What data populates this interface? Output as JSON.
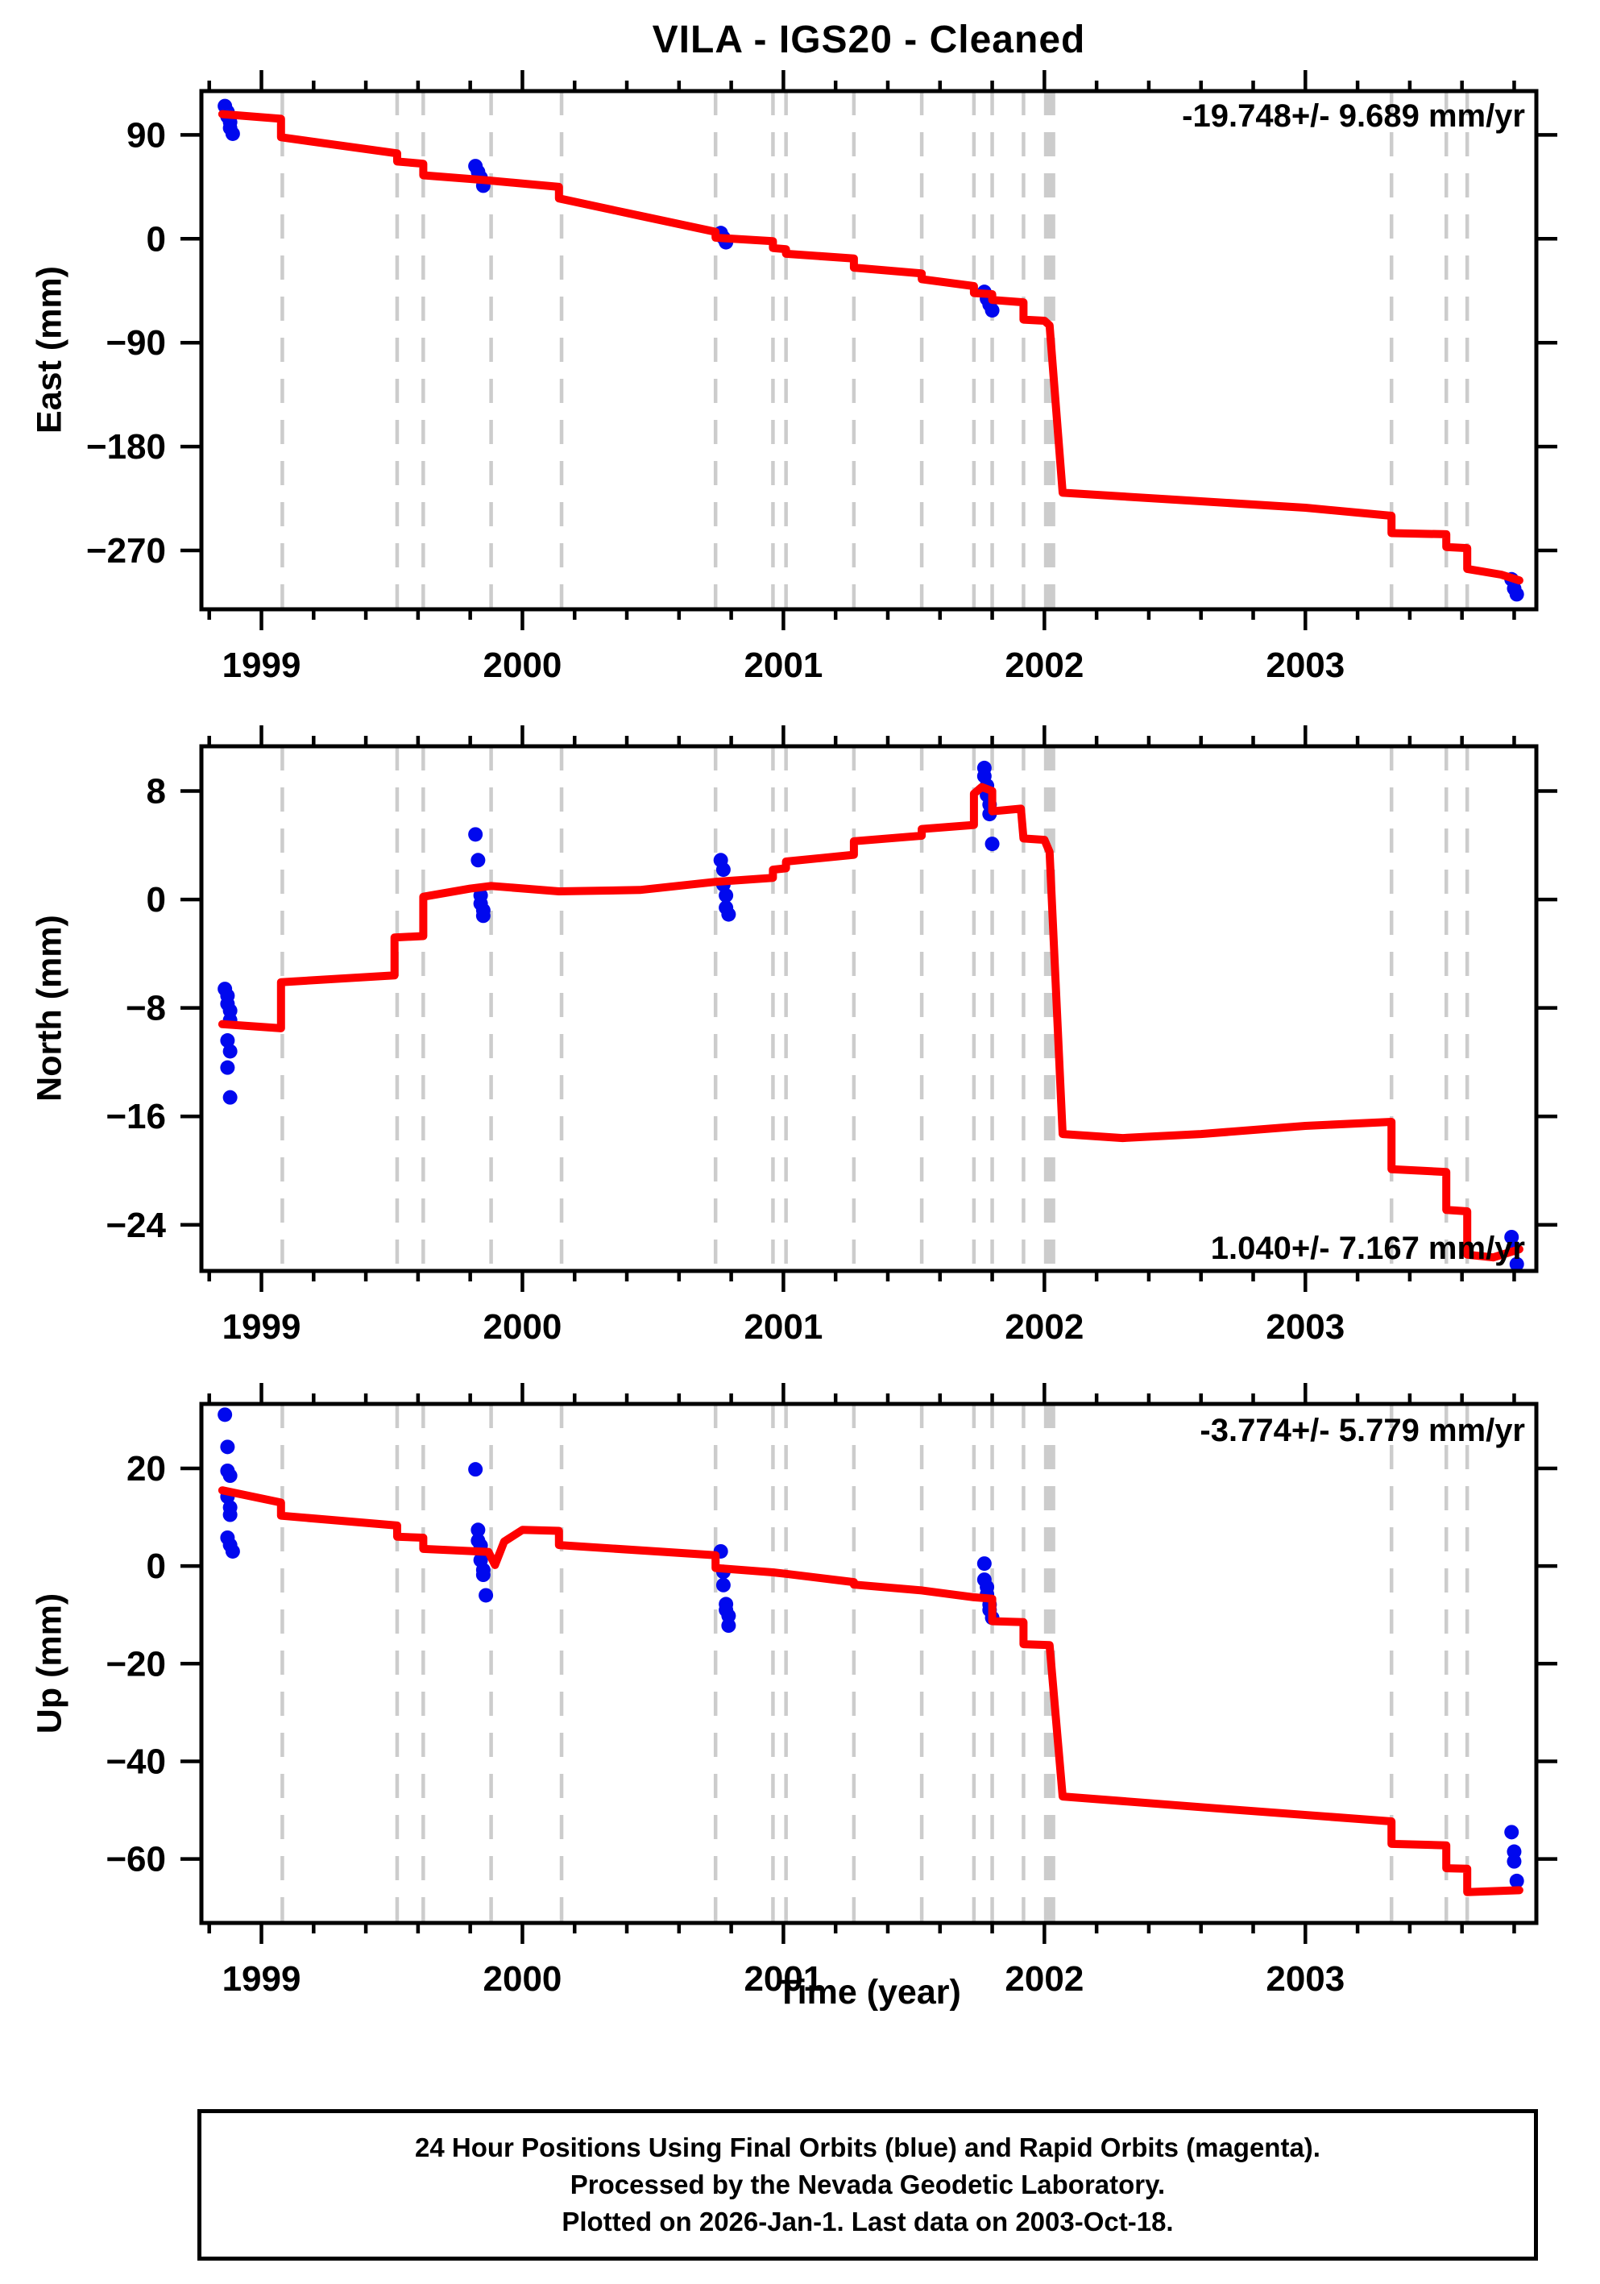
{
  "title": "VILA  - IGS20 - Cleaned",
  "xlabel": "Time (year)",
  "caption": {
    "line1": "24 Hour Positions Using Final Orbits (blue) and Rapid Orbits (magenta).",
    "line2": "Processed by the Nevada Geodetic Laboratory.",
    "line3": "Plotted on 2026-Jan-1. Last data on 2003-Oct-18."
  },
  "colors": {
    "model_line": "#fe0000",
    "final_orbit_points": "#0008ee",
    "event_lines": "#cccccc",
    "axis": "#000000",
    "background": "#ffffff"
  },
  "x_axis": {
    "lim": [
      1998.77,
      2003.885
    ],
    "year_ticks": [
      1999,
      2000,
      2001,
      2002,
      2003
    ],
    "minor_tick_interval": 0.2
  },
  "events": {
    "dashed": [
      1999.08,
      1999.52,
      1999.62,
      1999.88,
      2000.15,
      2000.74,
      2000.96,
      2001.01,
      2001.27,
      2001.53,
      2001.73,
      2001.8,
      2001.92,
      2003.33,
      2003.54,
      2003.62
    ],
    "thick": [
      2002.02
    ]
  },
  "chart_data": [
    {
      "type": "line",
      "name": "east",
      "ylabel": "East (mm)",
      "annotation": "-19.748+/- 9.689 mm/yr",
      "annotation_corner": "top-right",
      "ylim": [
        -321,
        128
      ],
      "yticks": [
        90,
        0,
        -90,
        -180,
        -270
      ],
      "model_line": [
        [
          1998.85,
          108
        ],
        [
          1999.075,
          104
        ],
        [
          1999.075,
          88
        ],
        [
          1999.52,
          74
        ],
        [
          1999.52,
          67
        ],
        [
          1999.62,
          65
        ],
        [
          1999.62,
          55
        ],
        [
          1999.85,
          51
        ],
        [
          2000.14,
          45
        ],
        [
          2000.14,
          35
        ],
        [
          2000.45,
          20
        ],
        [
          2000.74,
          6
        ],
        [
          2000.74,
          1
        ],
        [
          2000.96,
          -2
        ],
        [
          2000.96,
          -8
        ],
        [
          2001.01,
          -9
        ],
        [
          2001.01,
          -13
        ],
        [
          2001.27,
          -17
        ],
        [
          2001.27,
          -25
        ],
        [
          2001.53,
          -30
        ],
        [
          2001.53,
          -35
        ],
        [
          2001.73,
          -41
        ],
        [
          2001.73,
          -47
        ],
        [
          2001.8,
          -48
        ],
        [
          2001.8,
          -53
        ],
        [
          2001.92,
          -55
        ],
        [
          2001.92,
          -70
        ],
        [
          2002.0,
          -71
        ],
        [
          2002.02,
          -75
        ],
        [
          2002.07,
          -220
        ],
        [
          2002.5,
          -226
        ],
        [
          2003.0,
          -233
        ],
        [
          2003.33,
          -240
        ],
        [
          2003.33,
          -255
        ],
        [
          2003.54,
          -256
        ],
        [
          2003.54,
          -267
        ],
        [
          2003.62,
          -268
        ],
        [
          2003.62,
          -286
        ],
        [
          2003.75,
          -291
        ],
        [
          2003.82,
          -296
        ]
      ],
      "points": [
        [
          1998.86,
          115
        ],
        [
          1998.87,
          110
        ],
        [
          1998.87,
          106
        ],
        [
          1998.88,
          101
        ],
        [
          1998.88,
          96
        ],
        [
          1998.89,
          91
        ],
        [
          1999.82,
          63
        ],
        [
          1999.83,
          58
        ],
        [
          1999.84,
          53
        ],
        [
          1999.85,
          46
        ],
        [
          2000.76,
          5
        ],
        [
          2000.77,
          1
        ],
        [
          2000.78,
          -3
        ],
        [
          2001.77,
          -46
        ],
        [
          2001.78,
          -52
        ],
        [
          2001.79,
          -57
        ],
        [
          2001.8,
          -62
        ],
        [
          2003.79,
          -295
        ],
        [
          2003.8,
          -303
        ],
        [
          2003.81,
          -308
        ]
      ]
    },
    {
      "type": "line",
      "name": "north",
      "ylabel": "North (mm)",
      "annotation": "1.040+/- 7.167 mm/yr",
      "annotation_corner": "bottom-right",
      "ylim": [
        -27.4,
        11.3
      ],
      "yticks": [
        8,
        0,
        -8,
        -16,
        -24
      ],
      "model_line": [
        [
          1998.85,
          -9.2
        ],
        [
          1999.075,
          -9.5
        ],
        [
          1999.075,
          -6.1
        ],
        [
          1999.51,
          -5.6
        ],
        [
          1999.51,
          -2.8
        ],
        [
          1999.62,
          -2.7
        ],
        [
          1999.62,
          0.2
        ],
        [
          1999.8,
          0.8
        ],
        [
          1999.88,
          1.0
        ],
        [
          2000.14,
          0.6
        ],
        [
          2000.45,
          0.7
        ],
        [
          2000.74,
          1.3
        ],
        [
          2000.96,
          1.6
        ],
        [
          2000.96,
          2.2
        ],
        [
          2001.01,
          2.3
        ],
        [
          2001.01,
          2.8
        ],
        [
          2001.27,
          3.3
        ],
        [
          2001.27,
          4.3
        ],
        [
          2001.53,
          4.7
        ],
        [
          2001.53,
          5.2
        ],
        [
          2001.73,
          5.5
        ],
        [
          2001.73,
          7.8
        ],
        [
          2001.76,
          8.3
        ],
        [
          2001.8,
          8.0
        ],
        [
          2001.8,
          6.5
        ],
        [
          2001.91,
          6.7
        ],
        [
          2001.92,
          4.5
        ],
        [
          2002.0,
          4.4
        ],
        [
          2002.02,
          3.5
        ],
        [
          2002.07,
          -17.3
        ],
        [
          2002.3,
          -17.6
        ],
        [
          2002.6,
          -17.3
        ],
        [
          2003.0,
          -16.7
        ],
        [
          2003.33,
          -16.4
        ],
        [
          2003.33,
          -19.9
        ],
        [
          2003.54,
          -20.1
        ],
        [
          2003.54,
          -22.9
        ],
        [
          2003.62,
          -23.0
        ],
        [
          2003.62,
          -26.2
        ],
        [
          2003.72,
          -26.4
        ],
        [
          2003.82,
          -25.8
        ]
      ],
      "points": [
        [
          1998.86,
          -6.6
        ],
        [
          1998.87,
          -7.1
        ],
        [
          1998.87,
          -7.7
        ],
        [
          1998.88,
          -8.2
        ],
        [
          1998.88,
          -8.9
        ],
        [
          1998.87,
          -10.4
        ],
        [
          1998.88,
          -11.2
        ],
        [
          1998.87,
          -12.4
        ],
        [
          1998.88,
          -14.6
        ],
        [
          1999.82,
          4.8
        ],
        [
          1999.83,
          2.9
        ],
        [
          1999.84,
          0.3
        ],
        [
          1999.84,
          -0.3
        ],
        [
          1999.85,
          -0.8
        ],
        [
          1999.85,
          -1.2
        ],
        [
          2000.76,
          2.9
        ],
        [
          2000.77,
          2.2
        ],
        [
          2000.77,
          1.1
        ],
        [
          2000.78,
          0.3
        ],
        [
          2000.78,
          -0.6
        ],
        [
          2000.79,
          -1.1
        ],
        [
          2001.77,
          9.7
        ],
        [
          2001.77,
          9.1
        ],
        [
          2001.78,
          8.4
        ],
        [
          2001.78,
          7.7
        ],
        [
          2001.79,
          7.0
        ],
        [
          2001.79,
          6.3
        ],
        [
          2001.8,
          4.1
        ],
        [
          2003.79,
          -24.9
        ],
        [
          2003.8,
          -25.7
        ],
        [
          2003.81,
          -26.9
        ]
      ]
    },
    {
      "type": "line",
      "name": "up",
      "ylabel": "Up (mm)",
      "annotation": "-3.774+/- 5.779 mm/yr",
      "annotation_corner": "top-right",
      "ylim": [
        -73.1,
        33.2
      ],
      "yticks": [
        20,
        0,
        -20,
        -40,
        -60
      ],
      "model_line": [
        [
          1998.85,
          15.5
        ],
        [
          1999.075,
          13.0
        ],
        [
          1999.075,
          10.3
        ],
        [
          1999.52,
          8.3
        ],
        [
          1999.52,
          6.0
        ],
        [
          1999.62,
          5.8
        ],
        [
          1999.62,
          3.5
        ],
        [
          1999.87,
          2.9
        ],
        [
          1999.895,
          0.2
        ],
        [
          1999.93,
          5.0
        ],
        [
          2000.0,
          7.4
        ],
        [
          2000.14,
          7.2
        ],
        [
          2000.14,
          4.3
        ],
        [
          2000.74,
          2.2
        ],
        [
          2000.74,
          -0.4
        ],
        [
          2000.96,
          -1.3
        ],
        [
          2001.01,
          -1.6
        ],
        [
          2001.27,
          -3.3
        ],
        [
          2001.27,
          -3.8
        ],
        [
          2001.53,
          -5.0
        ],
        [
          2001.73,
          -6.4
        ],
        [
          2001.8,
          -6.7
        ],
        [
          2001.8,
          -11.3
        ],
        [
          2001.92,
          -11.5
        ],
        [
          2001.92,
          -16.0
        ],
        [
          2002.02,
          -16.2
        ],
        [
          2002.07,
          -47.2
        ],
        [
          2002.7,
          -49.8
        ],
        [
          2003.33,
          -52.3
        ],
        [
          2003.33,
          -56.9
        ],
        [
          2003.54,
          -57.2
        ],
        [
          2003.54,
          -61.9
        ],
        [
          2003.62,
          -62.0
        ],
        [
          2003.62,
          -66.8
        ],
        [
          2003.82,
          -66.4
        ]
      ],
      "points": [
        [
          1998.86,
          31.0
        ],
        [
          1998.87,
          24.4
        ],
        [
          1998.87,
          19.5
        ],
        [
          1998.88,
          18.5
        ],
        [
          1998.87,
          14.2
        ],
        [
          1998.88,
          12.0
        ],
        [
          1998.88,
          10.5
        ],
        [
          1998.87,
          5.8
        ],
        [
          1998.88,
          4.3
        ],
        [
          1998.89,
          3.0
        ],
        [
          1999.82,
          19.8
        ],
        [
          1999.83,
          7.4
        ],
        [
          1999.83,
          5.2
        ],
        [
          1999.84,
          4.2
        ],
        [
          1999.84,
          1.2
        ],
        [
          1999.85,
          -0.8
        ],
        [
          1999.85,
          -1.8
        ],
        [
          1999.86,
          -6.0
        ],
        [
          2000.76,
          3.0
        ],
        [
          2000.77,
          -1.2
        ],
        [
          2000.77,
          -3.9
        ],
        [
          2000.78,
          -7.8
        ],
        [
          2000.78,
          -9.0
        ],
        [
          2000.79,
          -10.2
        ],
        [
          2000.79,
          -12.2
        ],
        [
          2001.77,
          0.5
        ],
        [
          2001.77,
          -2.8
        ],
        [
          2001.78,
          -4.3
        ],
        [
          2001.78,
          -5.8
        ],
        [
          2001.79,
          -7.9
        ],
        [
          2001.79,
          -9.0
        ],
        [
          2001.8,
          -10.6
        ],
        [
          2003.79,
          -54.5
        ],
        [
          2003.8,
          -58.5
        ],
        [
          2003.8,
          -60.5
        ],
        [
          2003.81,
          -64.5
        ]
      ]
    }
  ]
}
